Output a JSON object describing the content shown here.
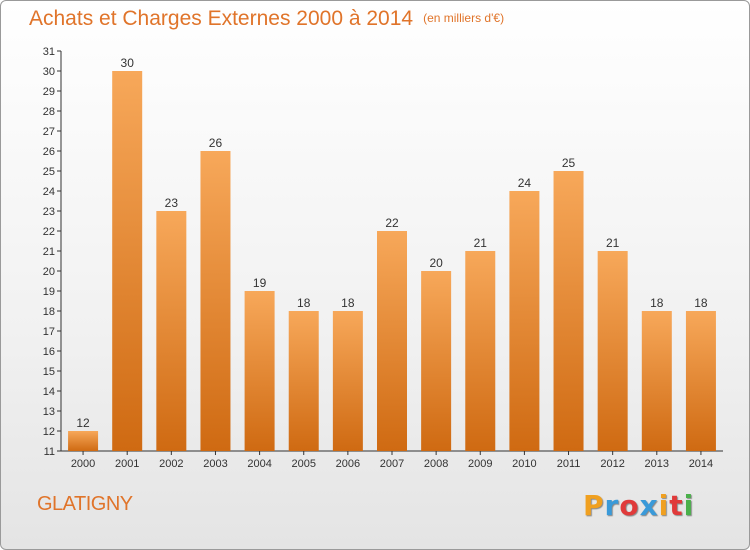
{
  "title": "Achats et Charges Externes 2000 à 2014",
  "unit": "(en milliers d'€)",
  "commune": "GLATIGNY",
  "logo": {
    "letters": [
      "P",
      "r",
      "o",
      "x",
      "i",
      "t",
      "i"
    ],
    "colors": [
      "#f0a020",
      "#3a9ad9",
      "#e03a3a",
      "#3a9ad9",
      "#f0a020",
      "#e03a3a",
      "#4ab04a"
    ]
  },
  "colors": {
    "bar_top": "#f7a85a",
    "bar_bottom": "#cf6a12",
    "accent": "#e0742a"
  },
  "chart_data": {
    "type": "bar",
    "title": "Achats et Charges Externes 2000 à 2014",
    "subtitle": "(en milliers d'€)",
    "categories": [
      "2000",
      "2001",
      "2002",
      "2003",
      "2004",
      "2005",
      "2006",
      "2007",
      "2008",
      "2009",
      "2010",
      "2011",
      "2012",
      "2013",
      "2014"
    ],
    "values": [
      12,
      30,
      23,
      26,
      19,
      18,
      18,
      22,
      20,
      21,
      24,
      25,
      21,
      18,
      18
    ],
    "xlabel": "",
    "ylabel": "",
    "ylim": [
      11,
      31
    ],
    "yticks": [
      11,
      12,
      13,
      14,
      15,
      16,
      17,
      18,
      19,
      20,
      21,
      22,
      23,
      24,
      25,
      26,
      27,
      28,
      29,
      30,
      31
    ],
    "grid": false,
    "legend": "none"
  }
}
